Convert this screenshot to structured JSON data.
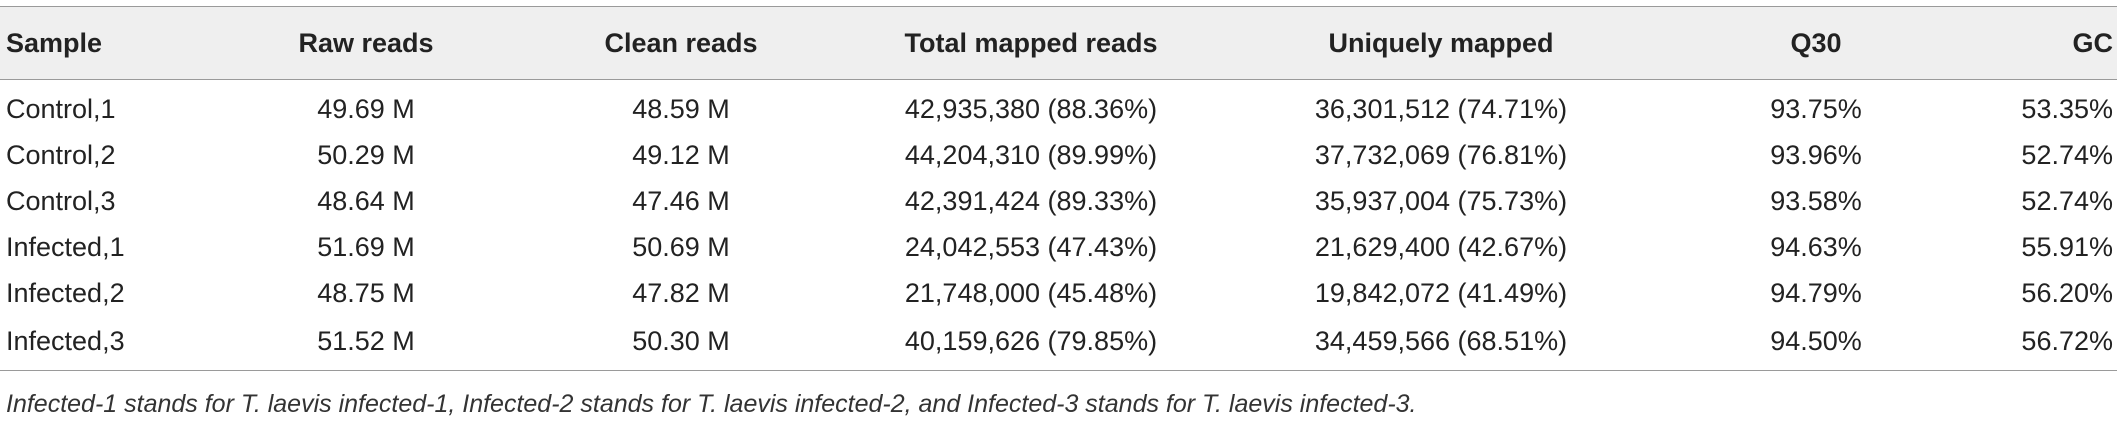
{
  "table": {
    "headers": {
      "sample": "Sample",
      "raw": "Raw reads",
      "clean": "Clean reads",
      "total": "Total mapped reads",
      "unique": "Uniquely mapped",
      "q30": "Q30",
      "gc": "GC"
    },
    "rows": [
      {
        "sample": "Control,1",
        "raw": "49.69 M",
        "clean": "48.59 M",
        "total": "42,935,380 (88.36%)",
        "unique": "36,301,512 (74.71%)",
        "q30": "93.75%",
        "gc": "53.35%"
      },
      {
        "sample": "Control,2",
        "raw": "50.29 M",
        "clean": "49.12 M",
        "total": "44,204,310 (89.99%)",
        "unique": "37,732,069 (76.81%)",
        "q30": "93.96%",
        "gc": "52.74%"
      },
      {
        "sample": "Control,3",
        "raw": "48.64 M",
        "clean": "47.46 M",
        "total": "42,391,424 (89.33%)",
        "unique": "35,937,004 (75.73%)",
        "q30": "93.58%",
        "gc": "52.74%"
      },
      {
        "sample": "Infected,1",
        "raw": "51.69 M",
        "clean": "50.69 M",
        "total": "24,042,553 (47.43%)",
        "unique": "21,629,400 (42.67%)",
        "q30": "94.63%",
        "gc": "55.91%"
      },
      {
        "sample": "Infected,2",
        "raw": "48.75 M",
        "clean": "47.82 M",
        "total": "21,748,000 (45.48%)",
        "unique": "19,842,072 (41.49%)",
        "q30": "94.79%",
        "gc": "56.20%"
      },
      {
        "sample": "Infected,3",
        "raw": "51.52 M",
        "clean": "50.30 M",
        "total": "40,159,626 (79.85%)",
        "unique": "34,459,566 (68.51%)",
        "q30": "94.50%",
        "gc": "56.72%"
      }
    ],
    "footnote": "Infected-1 stands for T. laevis infected-1, Infected-2 stands for T. laevis infected-2, and Infected-3 stands for T. laevis infected-3."
  }
}
